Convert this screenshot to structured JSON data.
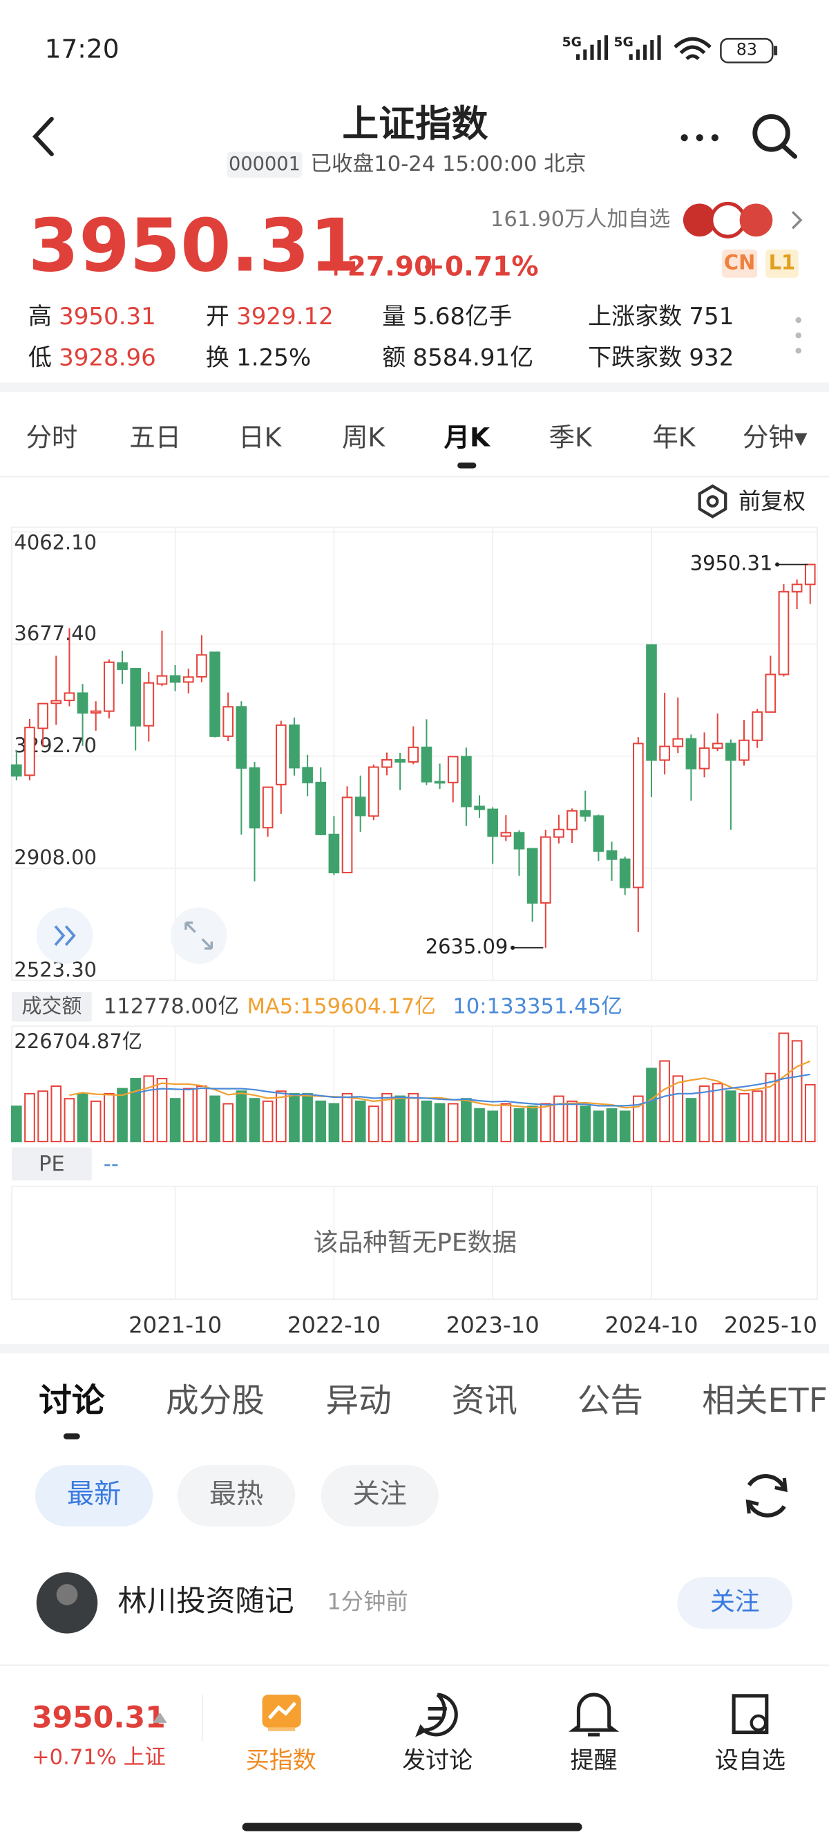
{
  "status_bar": {
    "time": "17:20",
    "network": [
      "5G",
      "5G"
    ],
    "battery": "83"
  },
  "header": {
    "title": "上证指数",
    "code": "000001",
    "status": "已收盘10-24 15:00:00 北京"
  },
  "quote": {
    "price": "3950.31",
    "change": "+27.90",
    "change_pct": "+0.71%",
    "followers": "161.90万人加自选",
    "badges": [
      "CN",
      "L1"
    ],
    "stats": [
      {
        "label": "高",
        "value": "3950.31",
        "color": "#e0403a"
      },
      {
        "label": "开",
        "value": "3929.12",
        "color": "#e0403a"
      },
      {
        "label": "量",
        "value": "5.68亿手",
        "color": "#222222"
      },
      {
        "label": "上涨家数",
        "value": "751",
        "color": "#222222"
      },
      {
        "label": "低",
        "value": "3928.96",
        "color": "#e0403a"
      },
      {
        "label": "换",
        "value": "1.25%",
        "color": "#222222"
      },
      {
        "label": "额",
        "value": "8584.91亿",
        "color": "#222222"
      },
      {
        "label": "下跌家数",
        "value": "932",
        "color": "#222222"
      }
    ]
  },
  "period_tabs": [
    "分时",
    "五日",
    "日K",
    "周K",
    "月K",
    "季K",
    "年K",
    "分钟▾"
  ],
  "active_period": "月K",
  "adjust_label": "前复权",
  "chart_data": [
    {
      "type": "candlestick",
      "categories": [
        null,
        null,
        null,
        null,
        null,
        null,
        null,
        null,
        null,
        null,
        null,
        null,
        "2021-10",
        null,
        null,
        null,
        null,
        null,
        null,
        null,
        null,
        null,
        null,
        null,
        "2022-10",
        null,
        null,
        null,
        null,
        null,
        null,
        null,
        null,
        null,
        null,
        null,
        "2023-10",
        null,
        null,
        null,
        null,
        null,
        null,
        null,
        null,
        null,
        null,
        null,
        "2024-10",
        null,
        null,
        null,
        null,
        null,
        null,
        null,
        null,
        null,
        null,
        null,
        "2025-10"
      ],
      "open": [
        3262,
        3227,
        3388,
        3474,
        3484,
        3509,
        3441,
        3447,
        3612,
        3593,
        3397,
        3540,
        3568,
        3547,
        3565,
        3649,
        3361,
        3462,
        3252,
        3047,
        3195,
        3399,
        3253,
        3202,
        3024,
        2893,
        3151,
        3087,
        3255,
        3280,
        3273,
        3323,
        3205,
        3202,
        3291,
        3120,
        3110,
        3018,
        3030,
        2975,
        2789,
        3015,
        3041,
        3105,
        3087,
        2967,
        2939,
        2842,
        3674,
        3279,
        3326,
        3352,
        3250,
        3320,
        3336,
        3279,
        3347,
        3444,
        3573,
        3857,
        3882
      ],
      "close": [
        3225,
        3391,
        3473,
        3483,
        3509,
        3441,
        3447,
        3615,
        3591,
        3397,
        3544,
        3568,
        3547,
        3564,
        3640,
        3361,
        3462,
        3252,
        3047,
        3186,
        3399,
        3253,
        3202,
        3024,
        2893,
        3151,
        3089,
        3255,
        3280,
        3273,
        3323,
        3205,
        3202,
        3291,
        3120,
        3110,
        3018,
        3030,
        2975,
        2789,
        3015,
        3041,
        3105,
        3087,
        2967,
        2939,
        2842,
        3336,
        3279,
        3326,
        3352,
        3250,
        3320,
        3336,
        3279,
        3347,
        3444,
        3573,
        3857,
        3882,
        3950.31
      ],
      "high": [
        3312,
        3420,
        3474,
        3637,
        3732,
        3540,
        3481,
        3625,
        3654,
        3596,
        3582,
        3723,
        3605,
        3593,
        3708,
        3651,
        3511,
        3481,
        3273,
        3187,
        3414,
        3425,
        3297,
        3254,
        3087,
        3189,
        3226,
        3264,
        3305,
        3304,
        3395,
        3419,
        3267,
        3293,
        3322,
        3158,
        3117,
        3090,
        3038,
        2976,
        3040,
        3091,
        3113,
        3174,
        3092,
        2999,
        2948,
        3358,
        3674,
        3510,
        3494,
        3367,
        3374,
        3439,
        3350,
        3417,
        3455,
        3637,
        3883,
        3899,
        3950.31
      ],
      "low": [
        3210,
        3210,
        3325,
        3400,
        3464,
        3328,
        3380,
        3422,
        3541,
        3312,
        3343,
        3533,
        3516,
        3508,
        3546,
        3357,
        3344,
        3023,
        2863,
        3016,
        3095,
        3226,
        3155,
        3021,
        2885,
        2896,
        3033,
        3073,
        3227,
        3176,
        3265,
        3193,
        3180,
        3134,
        3053,
        3081,
        2923,
        3001,
        2882,
        2724,
        2635.09,
        2993,
        2995,
        3068,
        2933,
        2865,
        2816,
        2689,
        3152,
        3230,
        3303,
        3140,
        3220,
        3310,
        3040,
        3260,
        3321,
        3442,
        3566,
        3797,
        3815
      ],
      "up_color": "#e6433c",
      "down_color": "#3fa26c",
      "ylim": [
        2523.3,
        4062.1
      ],
      "yticks": [
        {
          "value": 4062.1,
          "label": "4062.10"
        },
        {
          "value": 3677.4,
          "label": "3677.40"
        },
        {
          "value": 3292.7,
          "label": "3292.70"
        },
        {
          "value": 2908,
          "label": "2908.00"
        },
        {
          "value": 2523.3,
          "label": "2523.30"
        }
      ],
      "grid": true
    },
    {
      "type": "bar",
      "legend": [
        "成交额",
        "112778.00亿",
        "MA5:159604.17亿",
        "10:133351.45亿"
      ],
      "values": [
        70000,
        95000,
        100000,
        110000,
        85000,
        95000,
        80000,
        95000,
        105000,
        125000,
        130000,
        125000,
        85000,
        105000,
        110000,
        90000,
        75000,
        100000,
        85000,
        80000,
        100000,
        95000,
        95000,
        80000,
        75000,
        95000,
        80000,
        70000,
        95000,
        90000,
        95000,
        80000,
        75000,
        75000,
        85000,
        65000,
        60000,
        75000,
        65000,
        70000,
        75000,
        90000,
        80000,
        70000,
        60000,
        65000,
        60000,
        90000,
        145000,
        160000,
        130000,
        85000,
        110000,
        115000,
        100000,
        95000,
        100000,
        135000,
        215000,
        200000,
        112778
      ],
      "series": [
        {
          "color": "#f0a030",
          "values": [
            null,
            null,
            null,
            null,
            92000,
            97000,
            94000,
            93000,
            92000,
            100000,
            107000,
            116000,
            114000,
            114000,
            111000,
            103000,
            93000,
            96000,
            92000,
            86000,
            88000,
            92000,
            91000,
            90000,
            89000,
            88000,
            85000,
            80000,
            83000,
            86000,
            86000,
            86000,
            87000,
            83000,
            82000,
            76000,
            72000,
            72000,
            70000,
            67000,
            69000,
            75000,
            76000,
            77000,
            75000,
            73000,
            67000,
            69000,
            84000,
            104000,
            117000,
            122000,
            126000,
            120000,
            108000,
            101000,
            104000,
            109000,
            129000,
            149000,
            159604.17
          ]
        },
        {
          "color": "#4a8ad8",
          "values": [
            null,
            null,
            null,
            null,
            null,
            null,
            null,
            null,
            null,
            96000,
            102000,
            105000,
            104000,
            103000,
            106000,
            105000,
            105000,
            105000,
            103000,
            99000,
            96000,
            93000,
            94000,
            91000,
            88000,
            88000,
            89000,
            86000,
            87000,
            88000,
            87000,
            86000,
            84000,
            83000,
            84000,
            81000,
            79000,
            80000,
            77000,
            75000,
            73000,
            74000,
            74000,
            74000,
            71000,
            71000,
            71000,
            73000,
            81000,
            90000,
            95000,
            95000,
            98000,
            102000,
            106000,
            109000,
            113000,
            118000,
            125000,
            129000,
            133351.45
          ]
        }
      ],
      "ylim": [
        0,
        226704.87
      ],
      "yticks": [
        {
          "value": 226704.87,
          "label": "226704.87亿"
        }
      ]
    }
  ],
  "pe_panel": {
    "label": "PE",
    "value": "--",
    "message": "该品种暂无PE数据"
  },
  "content_tabs": [
    "讨论",
    "成分股",
    "异动",
    "资讯",
    "公告",
    "相关ETF"
  ],
  "filters": [
    "最新",
    "最热",
    "关注"
  ],
  "post": {
    "author": "林川投资随记",
    "time": "1分钟前",
    "follow": "关注"
  },
  "bottom_bar": {
    "price": "3950.31",
    "change": "+0.71% 上证",
    "actions": [
      "买指数",
      "发讨论",
      "提醒",
      "设自选"
    ]
  }
}
